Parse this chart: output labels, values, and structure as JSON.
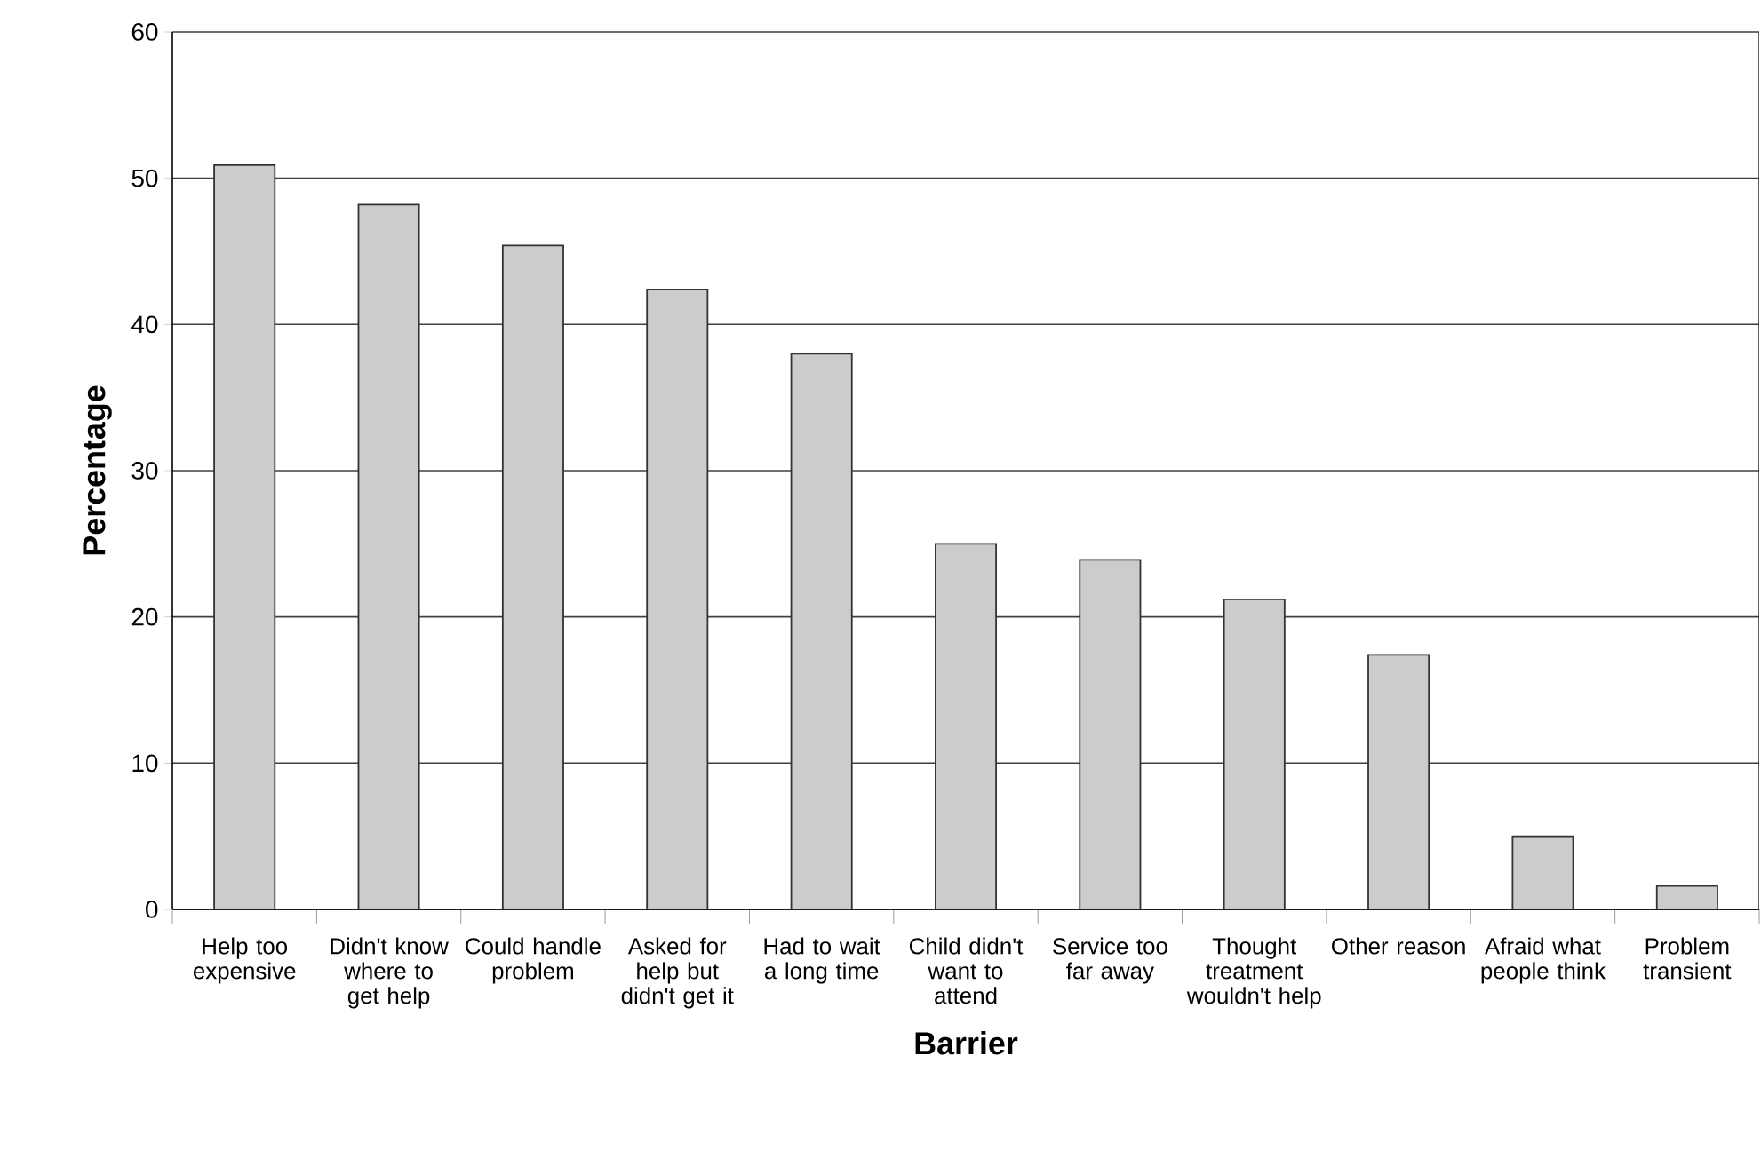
{
  "chart_data": {
    "type": "bar",
    "xlabel": "Barrier",
    "ylabel": "Percentage",
    "categories": [
      "Help too expensive",
      "Didn't know where to get help",
      "Could handle problem",
      "Asked for help but didn't get it",
      "Had to wait a long time",
      "Child didn't want to attend",
      "Service too far away",
      "Thought treatment wouldn't help",
      "Other reason",
      "Afraid what people think",
      "Problem transient"
    ],
    "values": [
      50.9,
      48.2,
      45.4,
      42.4,
      38.0,
      25.0,
      23.9,
      21.2,
      17.4,
      5.0,
      1.6
    ],
    "color": "#cccccc",
    "ylim": [
      0,
      60
    ],
    "yticks": [
      0,
      10,
      20,
      30,
      40,
      50,
      60
    ],
    "grid": "y"
  }
}
